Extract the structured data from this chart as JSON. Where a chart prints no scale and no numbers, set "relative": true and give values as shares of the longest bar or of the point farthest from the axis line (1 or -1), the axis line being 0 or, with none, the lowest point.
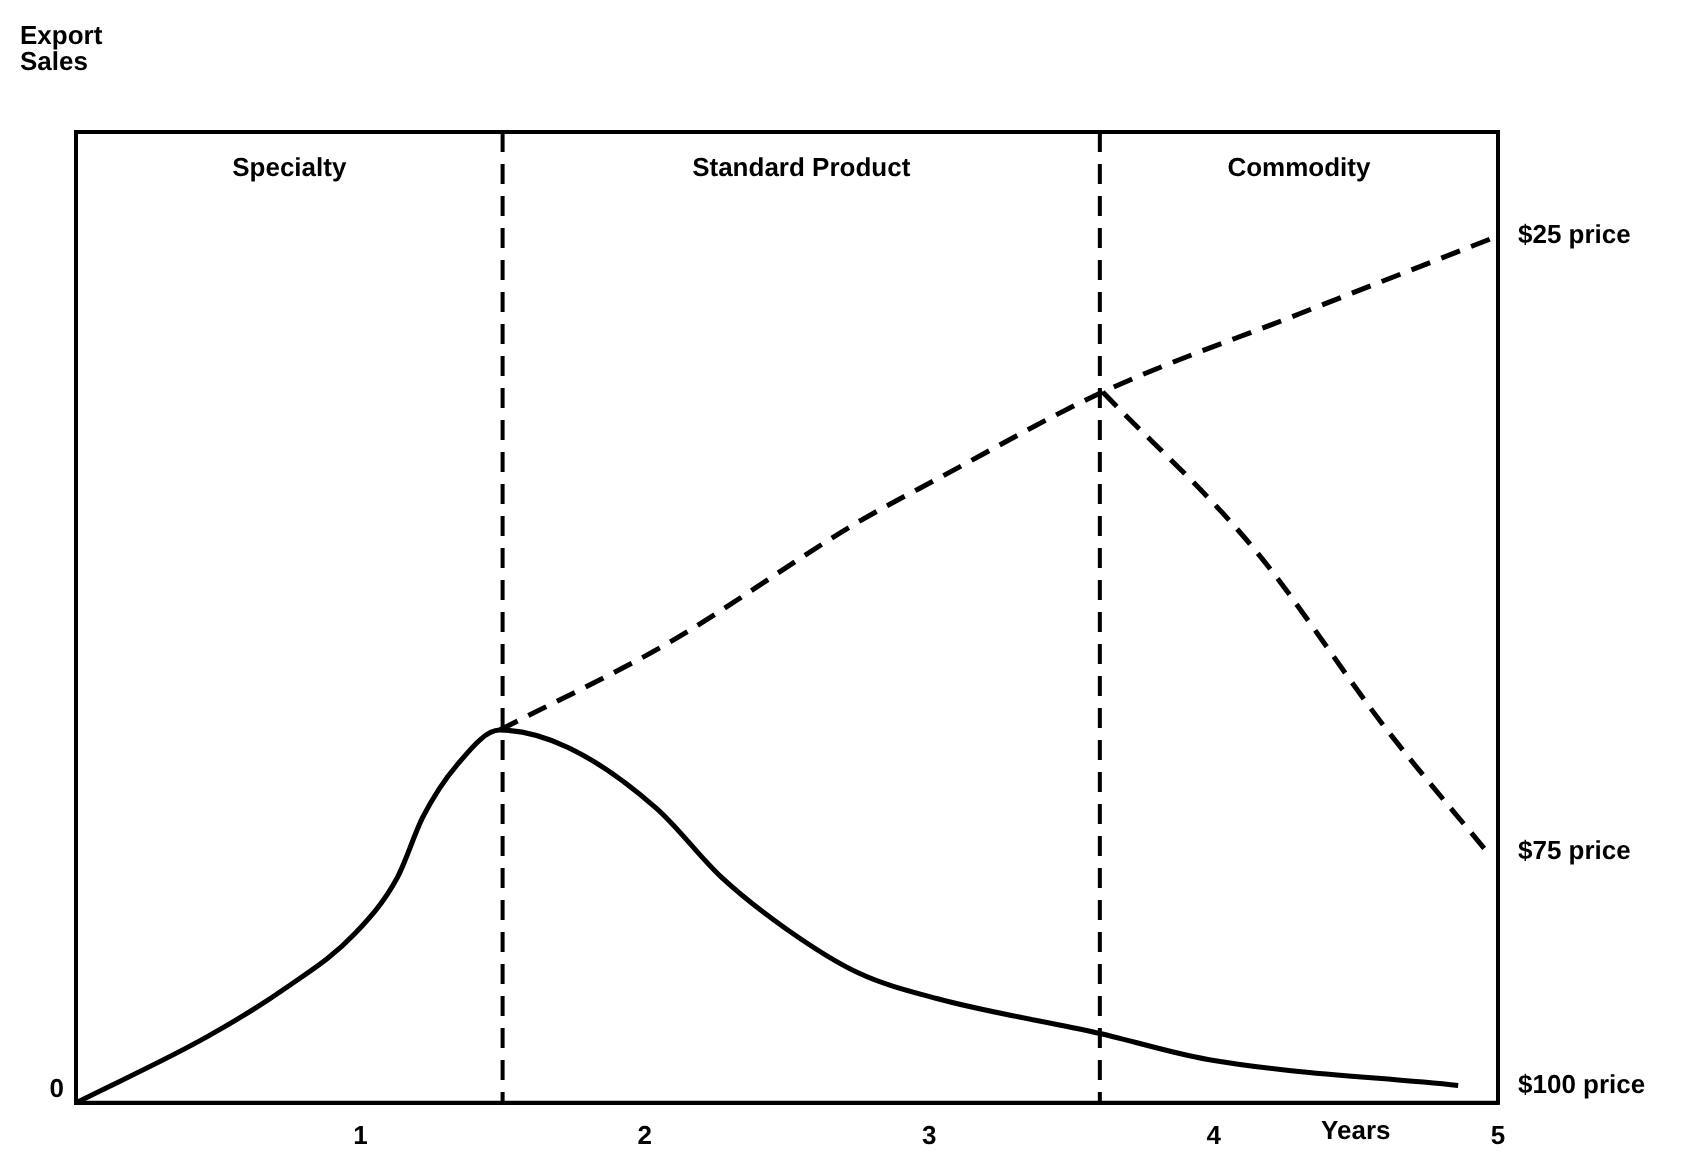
{
  "chart_data": {
    "type": "line",
    "relative": true,
    "xlabel": "Years",
    "xlim": [
      0,
      5
    ],
    "xticks": [
      1,
      2,
      3,
      4,
      5
    ],
    "grid": false,
    "legend": false,
    "marker": "none",
    "annotations": [
      "Export Sales",
      "0",
      "Specialty",
      "Standard Product",
      "Commodity"
    ],
    "ref_lines": [
      {
        "axis": "x",
        "value": 1.5,
        "color": "#000000",
        "line_style": "dashed"
      },
      {
        "axis": "x",
        "value": 3.6,
        "color": "#000000",
        "line_style": "dashed"
      }
    ],
    "series": [
      {
        "name": "$25 price",
        "color": "#000000",
        "line_style": "dashed",
        "x": [
          1.49,
          2.08,
          2.75,
          3.03,
          3.61,
          4.3,
          5.0
        ],
        "values": [
          0.43,
          0.53,
          0.67,
          0.72,
          0.82,
          0.91,
          1.0
        ]
      },
      {
        "name": "$75 price",
        "color": "#000000",
        "line_style": "dashed",
        "x": [
          3.61,
          4.14,
          4.61,
          4.96
        ],
        "values": [
          0.82,
          0.64,
          0.43,
          0.29
        ]
      },
      {
        "name": "$100 price",
        "color": "#000000",
        "line_style": "solid",
        "x": [
          0.0,
          0.46,
          0.74,
          0.98,
          1.13,
          1.22,
          1.34,
          1.49,
          1.73,
          2.04,
          2.27,
          2.5,
          2.75,
          3.03,
          3.6,
          3.98,
          4.86
        ],
        "values": [
          0.0,
          0.076,
          0.133,
          0.195,
          0.26,
          0.33,
          0.39,
          0.43,
          0.41,
          0.34,
          0.26,
          0.2,
          0.15,
          0.12,
          0.08,
          0.05,
          0.02
        ]
      }
    ]
  }
}
